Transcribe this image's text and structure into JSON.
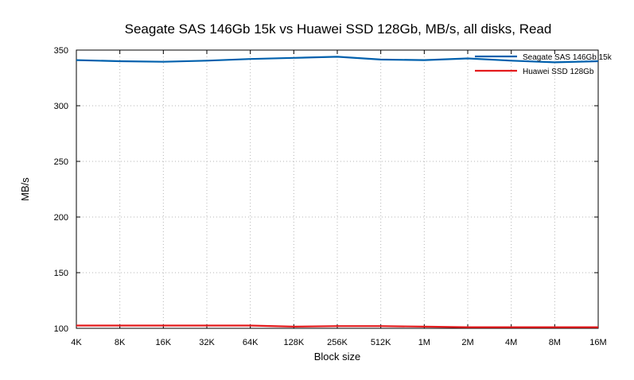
{
  "chart_data": {
    "type": "line",
    "title": "Seagate SAS 146Gb 15k vs Huawei SSD 128Gb, MB/s, all disks, Read",
    "xlabel": "Block size",
    "ylabel": "MB/s",
    "ylim": [
      100,
      350
    ],
    "yticks": [
      100,
      150,
      200,
      250,
      300,
      350
    ],
    "categories": [
      "4K",
      "8K",
      "16K",
      "32K",
      "64K",
      "128K",
      "256K",
      "512K",
      "1M",
      "2M",
      "4M",
      "8M",
      "16M"
    ],
    "grid": true,
    "legend_position": "top-right",
    "series": [
      {
        "name": "Seagate SAS 146Gb 15k",
        "color": "#0060ad",
        "values": [
          341,
          340,
          339.5,
          340.5,
          342,
          343,
          344,
          341.5,
          341,
          342.5,
          340.5,
          339,
          340
        ]
      },
      {
        "name": "Huawei SSD 128Gb",
        "color": "#e41a1c",
        "values": [
          102.5,
          102.5,
          102.5,
          102.5,
          102.5,
          101.5,
          102,
          102,
          101.5,
          101,
          101,
          101,
          101
        ]
      }
    ]
  }
}
